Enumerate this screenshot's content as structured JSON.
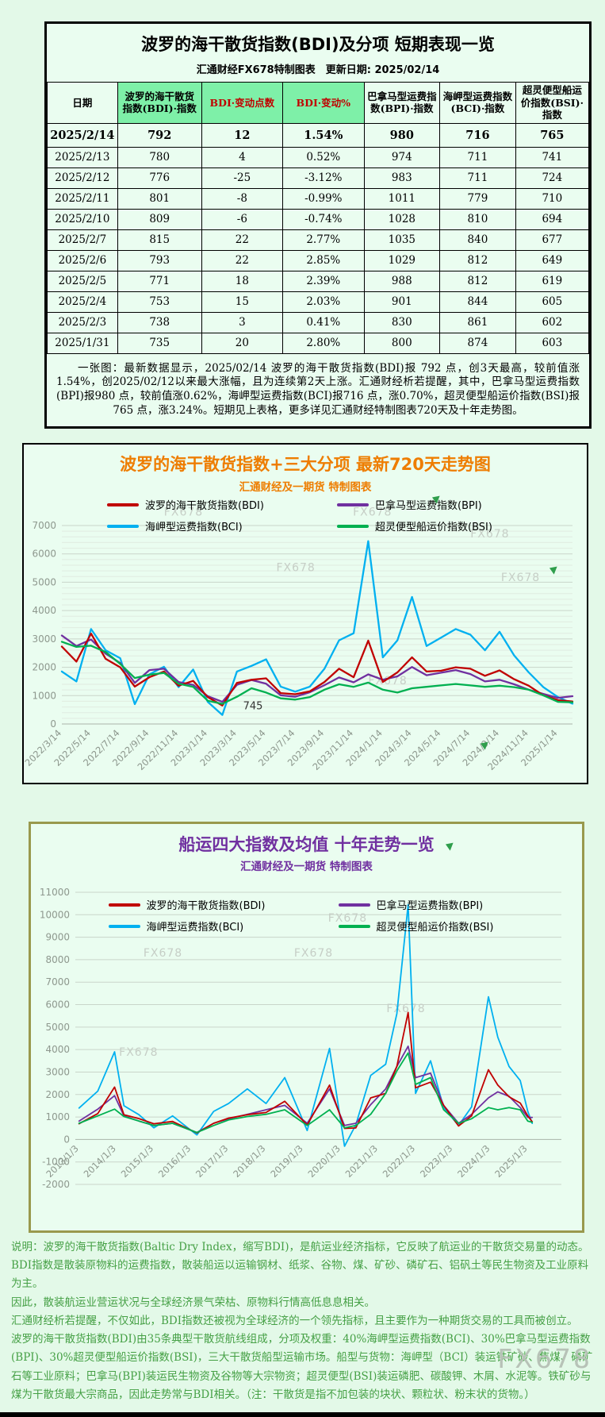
{
  "table_panel": {
    "title": "波罗的海干散货指数(BDI)及分项 短期表现一览",
    "subtitle": "汇通财经FX678特制图表　更新日期: 2025/02/14",
    "columns": [
      "日期",
      "波罗的海干散货指数(BDI)·指数",
      "BDI·变动点数",
      "BDI·变动%",
      "巴拿马型运费指数(BPI)·指数",
      "海岬型运费指数(BCI)·指数",
      "超灵便型船运价指数(BSI)·指数"
    ],
    "rows": [
      [
        "2025/2/14",
        "792",
        "12",
        "1.54%",
        "980",
        "716",
        "765"
      ],
      [
        "2025/2/13",
        "780",
        "4",
        "0.52%",
        "974",
        "711",
        "741"
      ],
      [
        "2025/2/12",
        "776",
        "-25",
        "-3.12%",
        "983",
        "711",
        "724"
      ],
      [
        "2025/2/11",
        "801",
        "-8",
        "-0.99%",
        "1011",
        "779",
        "710"
      ],
      [
        "2025/2/10",
        "809",
        "-6",
        "-0.74%",
        "1028",
        "810",
        "694"
      ],
      [
        "2025/2/7",
        "815",
        "22",
        "2.77%",
        "1035",
        "840",
        "677"
      ],
      [
        "2025/2/6",
        "793",
        "22",
        "2.85%",
        "1029",
        "812",
        "649"
      ],
      [
        "2025/2/5",
        "771",
        "18",
        "2.39%",
        "988",
        "812",
        "619"
      ],
      [
        "2025/2/4",
        "753",
        "15",
        "2.03%",
        "901",
        "844",
        "605"
      ],
      [
        "2025/2/3",
        "738",
        "3",
        "0.41%",
        "830",
        "861",
        "602"
      ],
      [
        "2025/1/31",
        "735",
        "20",
        "2.80%",
        "800",
        "874",
        "603"
      ]
    ],
    "note": "一张图：最新数据显示，2025/02/14 波罗的海干散货指数(BDI)报 792 点，创3天最高，较前值涨1.54%，创2025/02/12以来最大涨幅，且为连续第2天上涨。汇通财经析若提醒，其中，巴拿马型运费指数(BPI)报980 点，较前值涨0.62%，海岬型运费指数(BCI)报716 点，涨0.70%，超灵便型船运价指数(BSI)报765 点，涨3.24%。短期见上表格，更多详见汇通财经特制图表720天及十年走势图。"
  },
  "chart_data": [
    {
      "id": "chart720",
      "type": "line",
      "title": "波罗的海干散货指数+三大分项  最新720天走势图",
      "subtitle": "汇通财经及一期货  特制图表",
      "ylim": [
        0,
        7000
      ],
      "ytick": 1000,
      "minor_grid": true,
      "xlim": [
        0,
        35
      ],
      "x_ticks": [
        0,
        2,
        4,
        6,
        8,
        10,
        12,
        14,
        16,
        18,
        20,
        22,
        24,
        26,
        28,
        30,
        32,
        34
      ],
      "x_labels": [
        "2022/3/14",
        "2022/5/14",
        "2022/7/14",
        "2022/9/14",
        "2022/11/14",
        "2023/1/14",
        "2023/3/14",
        "2023/5/14",
        "2023/7/14",
        "2023/9/14",
        "2023/11/14",
        "2024/1/14",
        "2024/3/14",
        "2024/5/14",
        "2024/7/14",
        "2024/9/14",
        "2024/11/14",
        "2025/1/14"
      ],
      "series": [
        {
          "name": "波罗的海干散货指数(BDI)",
          "color": "#c00000",
          "values": [
            2730,
            2200,
            3190,
            2300,
            2000,
            1320,
            1650,
            1850,
            1350,
            1520,
            950,
            650,
            1450,
            1560,
            1610,
            1090,
            1050,
            1150,
            1480,
            1950,
            1650,
            2940,
            1480,
            1820,
            2350,
            1850,
            1880,
            2000,
            1950,
            1700,
            1890,
            1580,
            1350,
            1010,
            840,
            792
          ]
        },
        {
          "name": "巴拿马型运费指数(BPI)",
          "color": "#7030a0",
          "values": [
            3120,
            2750,
            2980,
            2480,
            2150,
            1450,
            1900,
            1950,
            1480,
            1380,
            980,
            780,
            1380,
            1550,
            1420,
            1010,
            960,
            1120,
            1370,
            1640,
            1470,
            1750,
            1560,
            1680,
            2010,
            1720,
            1810,
            1900,
            1760,
            1500,
            1560,
            1400,
            1210,
            1060,
            920,
            980
          ]
        },
        {
          "name": "海岬型运费指数(BCI)",
          "color": "#00b0f0",
          "values": [
            1850,
            1500,
            3350,
            2600,
            2320,
            700,
            1750,
            2020,
            1300,
            1920,
            780,
            320,
            1850,
            2050,
            2280,
            1320,
            1140,
            1320,
            1950,
            2950,
            3200,
            6450,
            2350,
            2950,
            4480,
            2750,
            3050,
            3350,
            3150,
            2600,
            3250,
            2420,
            1820,
            1300,
            950,
            716
          ]
        },
        {
          "name": "超灵便型船运价指数(BSI)",
          "color": "#00b050",
          "values": [
            2900,
            2720,
            2760,
            2540,
            2120,
            1620,
            1740,
            1800,
            1420,
            1310,
            820,
            710,
            960,
            1260,
            1110,
            905,
            860,
            950,
            1210,
            1400,
            1310,
            1460,
            1210,
            1110,
            1260,
            1310,
            1360,
            1410,
            1360,
            1310,
            1350,
            1300,
            1210,
            1010,
            780,
            765
          ]
        }
      ],
      "annotations": [
        {
          "text": "745",
          "x": 13.1,
          "y": 520
        }
      ],
      "watermark": "FX678",
      "watermarks": [
        [
          0.2,
          -0.05
        ],
        [
          0.57,
          -0.05
        ],
        [
          0.8,
          0.06
        ],
        [
          0.42,
          0.23
        ],
        [
          0.86,
          0.28
        ],
        [
          0.6,
          0.8
        ]
      ]
    },
    {
      "id": "chart10y",
      "type": "line",
      "title": "船运四大指数及均值 十年走势一览",
      "subtitle": "汇通财经及一期货 特制图表",
      "ylim": [
        -2000,
        11000
      ],
      "ytick": 1000,
      "minor_grid": false,
      "xlim": [
        2012.9,
        2025.9
      ],
      "x_ticks": [
        2013,
        2014,
        2015,
        2016,
        2017,
        2018,
        2019,
        2020,
        2021,
        2022,
        2023,
        2024,
        2025
      ],
      "x_labels": [
        "2013/1/3",
        "2014/1/3",
        "2015/1/3",
        "2016/1/3",
        "2017/1/3",
        "2018/1/3",
        "2019/1/3",
        "2020/1/3",
        "2021/1/3",
        "2022/1/3",
        "2023/1/3",
        "2024/1/3",
        "2025/1/3"
      ],
      "x": [
        2013.0,
        2013.5,
        2013.95,
        2014.2,
        2014.6,
        2015.0,
        2015.5,
        2016.15,
        2016.6,
        2017.0,
        2017.5,
        2018.0,
        2018.5,
        2019.1,
        2019.7,
        2020.1,
        2020.4,
        2020.8,
        2021.2,
        2021.5,
        2021.8,
        2022.0,
        2022.4,
        2022.75,
        2023.15,
        2023.5,
        2023.95,
        2024.2,
        2024.5,
        2024.8,
        2025.0,
        2025.12
      ],
      "series": [
        {
          "name": "波罗的海干散货指数(BDI)",
          "color": "#c00000",
          "values": [
            700,
            1150,
            2330,
            1100,
            930,
            700,
            800,
            290,
            720,
            950,
            1100,
            1200,
            1700,
            640,
            2420,
            490,
            510,
            1850,
            2050,
            3250,
            5650,
            2300,
            2550,
            1520,
            600,
            1050,
            3100,
            2420,
            1900,
            1620,
            1050,
            792
          ]
        },
        {
          "name": "巴拿马型运费指数(BPI)",
          "color": "#7030a0",
          "values": [
            820,
            1350,
            1950,
            1050,
            820,
            620,
            720,
            310,
            720,
            920,
            1120,
            1320,
            1520,
            720,
            2250,
            620,
            720,
            1550,
            2250,
            3250,
            4150,
            2750,
            2950,
            1520,
            720,
            1120,
            1850,
            2120,
            1920,
            1420,
            980,
            980
          ]
        },
        {
          "name": "海岬型运费指数(BCI)",
          "color": "#00b0f0",
          "values": [
            1400,
            2150,
            3900,
            1500,
            1100,
            520,
            1050,
            200,
            1250,
            1600,
            2250,
            1600,
            2750,
            400,
            4050,
            -300,
            650,
            2850,
            3350,
            5600,
            10450,
            2050,
            3500,
            1420,
            620,
            1450,
            6350,
            4550,
            3250,
            2620,
            1250,
            716
          ]
        },
        {
          "name": "超灵便型船运价指数(BSI)",
          "color": "#00b050",
          "values": [
            720,
            1050,
            1350,
            1020,
            820,
            620,
            720,
            310,
            620,
            870,
            1020,
            1120,
            1320,
            620,
            1320,
            520,
            620,
            1120,
            2050,
            3050,
            3850,
            2450,
            2750,
            1320,
            720,
            920,
            1420,
            1320,
            1420,
            1320,
            820,
            765
          ]
        }
      ],
      "annotations": [],
      "watermark": "FX678",
      "watermarks": [
        [
          0.52,
          0.1
        ],
        [
          0.14,
          0.22
        ],
        [
          0.45,
          0.22
        ],
        [
          0.64,
          0.41
        ],
        [
          0.09,
          0.56
        ]
      ]
    }
  ],
  "footer": {
    "lines": [
      "说明：波罗的海干散货指数(Baltic Dry Index，缩写BDI)，是航运业经济指标，它反映了航运业的干散货交易量的动态。",
      "BDI指数是散装原物料的运费指数，散装船运以运输钢材、纸浆、谷物、煤、矿砂、磷矿石、铝矾土等民生物资及工业原料为主。",
      "因此，散装航运业营运状况与全球经济景气荣枯、原物料行情高低息息相关。",
      "汇通财经析若提醒，不仅如此，BDI指数还被视为全球经济的一个领先指标，且主要作为一种期货交易的工具而被创立。",
      "波罗的海干散货指数(BDI)由35条典型干散货航线组成，分项及权重：40%海岬型运费指数(BCI)、30%巴拿马型运费指数(BPI)、30%超灵便型船运价指数(BSI)，三大干散货船型运输市场。船型与货物：海岬型（BCI）装运铁矿砂、焦煤、磷矿石等工业原料；巴拿马(BPI)装运民生物资及谷物等大宗物资；超灵便型(BSI)装运磷肥、碳酸钾、木屑、水泥等。铁矿砂与煤为干散货最大宗商品，因此走势常与BDI相关。（注：干散货是指不加包装的块状、颗粒状、粉末状的货物。）"
    ],
    "watermark": "FX678"
  },
  "colors": {
    "bdi": "#c00000",
    "bpi": "#7030a0",
    "bci": "#00b0f0",
    "bsi": "#00b050",
    "header_green": "#7ef0a8",
    "orange_title": "#ee7d00",
    "purple_title": "#7030a0",
    "footer_green": "#45a045",
    "panel3_border": "#99994d"
  }
}
